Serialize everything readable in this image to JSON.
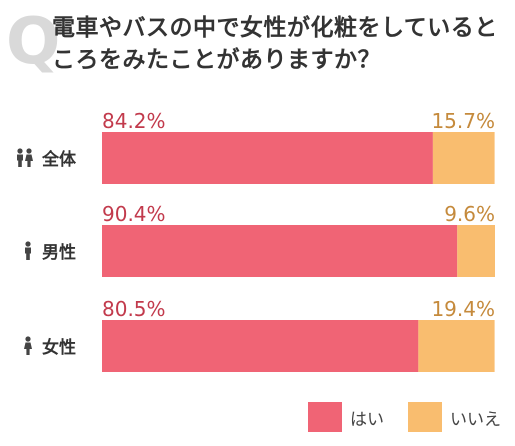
{
  "question_mark": "Q",
  "title": "電車やバスの中で女性が化粧をしているところをみたことがありますか？",
  "colors": {
    "yes": "#f06475",
    "no": "#f9bd6f",
    "yes_label": "#c23a4c",
    "no_label": "#c58a3c"
  },
  "chart_data": {
    "type": "bar",
    "orientation": "horizontal",
    "stacked": true,
    "categories": [
      "全体",
      "男性",
      "女性"
    ],
    "category_icons": [
      "couple-icon",
      "male-icon",
      "female-icon"
    ],
    "series": [
      {
        "name": "はい",
        "values": [
          84.2,
          90.4,
          80.5
        ]
      },
      {
        "name": "いいえ",
        "values": [
          15.7,
          9.6,
          19.4
        ]
      }
    ],
    "value_suffix": "%",
    "xlim": [
      0,
      100
    ],
    "grid": false,
    "legend": "bottom-right"
  }
}
